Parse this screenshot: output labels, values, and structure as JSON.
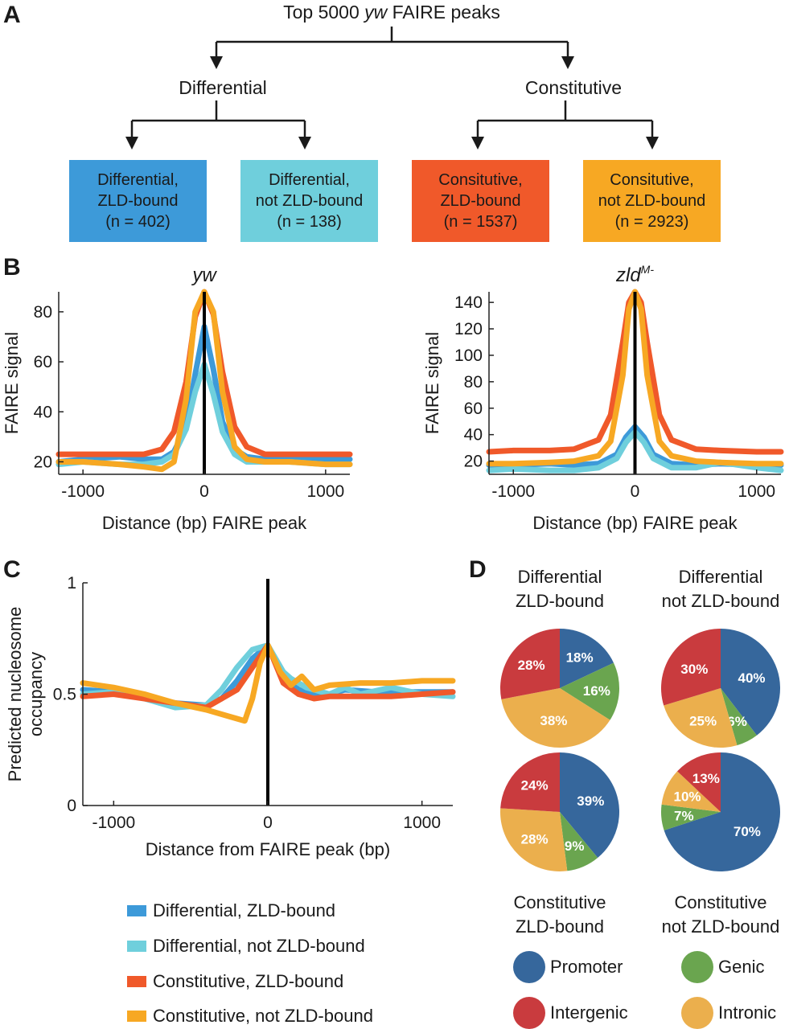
{
  "panels": {
    "a": "A",
    "b": "B",
    "c": "C",
    "d": "D"
  },
  "colors": {
    "diff_zld": "#3d9ad9",
    "diff_not": "#6fcfdc",
    "const_zld": "#f0592a",
    "const_not": "#f7a823",
    "promoter": "#36679c",
    "genic": "#6aa54f",
    "intergenic": "#c93b3e",
    "intronic": "#ebaf4d"
  },
  "tree": {
    "root_prefix": "Top 5000 ",
    "root_italic": "yw",
    "root_suffix": " FAIRE peaks",
    "differential": "Differential",
    "constitutive": "Constitutive",
    "boxes": [
      {
        "line1": "Differential,",
        "line2": "ZLD-bound",
        "line3": "(n = 402)"
      },
      {
        "line1": "Differential,",
        "line2": "not ZLD-bound",
        "line3": "(n = 138)"
      },
      {
        "line1": "Consitutive,",
        "line2": "ZLD-bound",
        "line3": "(n = 1537)"
      },
      {
        "line1": "Consitutive,",
        "line2": "not ZLD-bound",
        "line3": "(n = 2923)"
      }
    ]
  },
  "chart_data": [
    {
      "type": "line",
      "title": "yw",
      "xlabel": "Distance (bp) FAIRE peak",
      "ylabel": "FAIRE signal",
      "xlim": [
        -1200,
        1200
      ],
      "ylim": [
        15,
        88
      ],
      "x_ticks": [
        -1000,
        0,
        1000
      ],
      "x_tick_labels": [
        "-1000",
        "0",
        "1000"
      ],
      "y_ticks": [
        20,
        40,
        60,
        80
      ],
      "y_tick_labels": [
        "20",
        "40",
        "60",
        "80"
      ],
      "vertical_line_at": 0,
      "series": [
        {
          "name": "Differential, ZLD-bound",
          "color": "#3d9ad9",
          "x": [
            -1200,
            -1000,
            -700,
            -500,
            -350,
            -250,
            -150,
            -75,
            0,
            75,
            150,
            250,
            350,
            500,
            700,
            1000,
            1200
          ],
          "y": [
            20,
            21,
            22,
            21,
            21,
            24,
            34,
            55,
            74,
            57,
            36,
            25,
            22,
            21,
            21,
            21,
            21
          ]
        },
        {
          "name": "Differential, not ZLD-bound",
          "color": "#6fcfdc",
          "x": [
            -1200,
            -1000,
            -700,
            -500,
            -350,
            -250,
            -150,
            -75,
            0,
            75,
            150,
            250,
            350,
            500,
            700,
            1000,
            1200
          ],
          "y": [
            19,
            20,
            19,
            19,
            20,
            23,
            33,
            48,
            59,
            47,
            32,
            23,
            20,
            20,
            20,
            19,
            19
          ]
        },
        {
          "name": "Constitutive, ZLD-bound",
          "color": "#f0592a",
          "x": [
            -1200,
            -1000,
            -700,
            -500,
            -350,
            -250,
            -150,
            -75,
            0,
            75,
            150,
            250,
            350,
            500,
            700,
            1000,
            1200
          ],
          "y": [
            23,
            23,
            23,
            23,
            25,
            32,
            52,
            78,
            88,
            79,
            56,
            34,
            26,
            23,
            23,
            23,
            23
          ]
        },
        {
          "name": "Constitutive, not ZLD-bound",
          "color": "#f7a823",
          "x": [
            -1200,
            -1000,
            -700,
            -500,
            -350,
            -250,
            -150,
            -75,
            0,
            75,
            150,
            250,
            350,
            500,
            700,
            1000,
            1200
          ],
          "y": [
            20,
            20,
            19,
            18,
            17,
            20,
            45,
            80,
            88,
            80,
            48,
            26,
            21,
            20,
            20,
            19,
            19
          ]
        }
      ]
    },
    {
      "type": "line",
      "title": "zld",
      "title_superscript": "M-",
      "xlabel": "Distance (bp) FAIRE peak",
      "ylabel": "FAIRE signal",
      "xlim": [
        -1200,
        1200
      ],
      "ylim": [
        10,
        148
      ],
      "x_ticks": [
        -1000,
        0,
        1000
      ],
      "x_tick_labels": [
        "-1000",
        "0",
        "1000"
      ],
      "y_ticks": [
        20,
        40,
        60,
        80,
        100,
        120,
        140
      ],
      "y_tick_labels": [
        "20",
        "40",
        "60",
        "80",
        "100",
        "120",
        "140"
      ],
      "vertical_line_at": 0,
      "series": [
        {
          "name": "Differential, ZLD-bound",
          "color": "#3d9ad9",
          "x": [
            -1200,
            -1000,
            -700,
            -500,
            -300,
            -150,
            -75,
            0,
            75,
            150,
            300,
            500,
            700,
            1000,
            1200
          ],
          "y": [
            17,
            17,
            18,
            17,
            18,
            25,
            38,
            46,
            38,
            25,
            18,
            17,
            18,
            17,
            17
          ]
        },
        {
          "name": "Differential, not ZLD-bound",
          "color": "#6fcfdc",
          "x": [
            -1200,
            -1000,
            -700,
            -500,
            -300,
            -150,
            -75,
            0,
            75,
            150,
            300,
            500,
            700,
            1000,
            1200
          ],
          "y": [
            13,
            14,
            13,
            13,
            15,
            22,
            34,
            42,
            34,
            22,
            15,
            15,
            19,
            15,
            13
          ]
        },
        {
          "name": "Constitutive, ZLD-bound",
          "color": "#f0592a",
          "x": [
            -1200,
            -1000,
            -700,
            -500,
            -300,
            -200,
            -100,
            -50,
            0,
            50,
            100,
            200,
            300,
            500,
            700,
            1000,
            1200
          ],
          "y": [
            27,
            28,
            28,
            29,
            36,
            55,
            110,
            140,
            148,
            140,
            110,
            55,
            36,
            29,
            28,
            27,
            27
          ]
        },
        {
          "name": "Constitutive, not ZLD-bound",
          "color": "#f7a823",
          "x": [
            -1200,
            -1000,
            -700,
            -500,
            -300,
            -200,
            -100,
            -50,
            0,
            50,
            100,
            200,
            300,
            500,
            700,
            1000,
            1200
          ],
          "y": [
            18,
            18,
            19,
            20,
            24,
            35,
            85,
            135,
            148,
            135,
            85,
            35,
            24,
            20,
            19,
            18,
            18
          ]
        }
      ]
    },
    {
      "type": "line",
      "title": "",
      "xlabel": "Distance from FAIRE peak (bp)",
      "ylabel": "Predicted nucleosome occupancy",
      "xlim": [
        -1200,
        1200
      ],
      "ylim": [
        0,
        1
      ],
      "x_ticks": [
        -1000,
        0,
        1000
      ],
      "x_tick_labels": [
        "-1000",
        "0",
        "1000"
      ],
      "y_ticks": [
        0,
        0.5,
        1
      ],
      "y_tick_labels": [
        "0",
        "0.5",
        "1"
      ],
      "vertical_line_at": 0,
      "series": [
        {
          "name": "Differential, ZLD-bound",
          "color": "#3d9ad9",
          "x": [
            -1200,
            -1000,
            -800,
            -600,
            -400,
            -300,
            -200,
            -100,
            0,
            100,
            200,
            300,
            400,
            500,
            700,
            900,
            1200
          ],
          "y": [
            0.52,
            0.51,
            0.49,
            0.46,
            0.45,
            0.48,
            0.56,
            0.66,
            0.72,
            0.58,
            0.52,
            0.5,
            0.5,
            0.52,
            0.51,
            0.51,
            0.51
          ]
        },
        {
          "name": "Differential, not ZLD-bound",
          "color": "#6fcfdc",
          "x": [
            -1200,
            -1000,
            -800,
            -600,
            -400,
            -300,
            -200,
            -100,
            0,
            100,
            150,
            250,
            400,
            500,
            600,
            800,
            1000,
            1200
          ],
          "y": [
            0.5,
            0.51,
            0.48,
            0.44,
            0.45,
            0.52,
            0.62,
            0.7,
            0.72,
            0.6,
            0.57,
            0.53,
            0.5,
            0.53,
            0.5,
            0.53,
            0.5,
            0.49
          ]
        },
        {
          "name": "Constitutive, ZLD-bound",
          "color": "#f0592a",
          "x": [
            -1200,
            -1000,
            -800,
            -600,
            -400,
            -200,
            -100,
            0,
            100,
            200,
            300,
            400,
            600,
            800,
            1000,
            1200
          ],
          "y": [
            0.49,
            0.5,
            0.48,
            0.46,
            0.44,
            0.52,
            0.62,
            0.72,
            0.55,
            0.5,
            0.48,
            0.49,
            0.49,
            0.49,
            0.5,
            0.51
          ]
        },
        {
          "name": "Constitutive, not ZLD-bound",
          "color": "#f7a823",
          "x": [
            -1200,
            -1000,
            -800,
            -600,
            -400,
            -250,
            -150,
            -100,
            -50,
            0,
            80,
            150,
            220,
            300,
            400,
            600,
            800,
            1000,
            1200
          ],
          "y": [
            0.55,
            0.53,
            0.5,
            0.46,
            0.43,
            0.4,
            0.38,
            0.48,
            0.64,
            0.72,
            0.6,
            0.54,
            0.58,
            0.52,
            0.54,
            0.55,
            0.55,
            0.56,
            0.56
          ]
        }
      ]
    },
    {
      "type": "pie",
      "title_lines": [
        "Differential",
        "ZLD-bound"
      ],
      "slices": [
        {
          "label": "Promoter",
          "value": 18,
          "text": "18%",
          "color": "#36679c"
        },
        {
          "label": "Genic",
          "value": 16,
          "text": "16%",
          "color": "#6aa54f"
        },
        {
          "label": "Intronic",
          "value": 38,
          "text": "38%",
          "color": "#ebaf4d"
        },
        {
          "label": "Intergenic",
          "value": 28,
          "text": "28%",
          "color": "#c93b3e"
        }
      ]
    },
    {
      "type": "pie",
      "title_lines": [
        "Differential",
        "not ZLD-bound"
      ],
      "slices": [
        {
          "label": "Promoter",
          "value": 40,
          "text": "40%",
          "color": "#36679c"
        },
        {
          "label": "Genic",
          "value": 6,
          "text": "6%",
          "color": "#6aa54f"
        },
        {
          "label": "Intronic",
          "value": 25,
          "text": "25%",
          "color": "#ebaf4d"
        },
        {
          "label": "Intergenic",
          "value": 30,
          "text": "30%",
          "color": "#c93b3e"
        }
      ]
    },
    {
      "type": "pie",
      "title_lines": [
        "Constitutive",
        "ZLD-bound"
      ],
      "slices": [
        {
          "label": "Promoter",
          "value": 39,
          "text": "39%",
          "color": "#36679c"
        },
        {
          "label": "Genic",
          "value": 9,
          "text": "9%",
          "color": "#6aa54f"
        },
        {
          "label": "Intronic",
          "value": 28,
          "text": "28%",
          "color": "#ebaf4d"
        },
        {
          "label": "Intergenic",
          "value": 24,
          "text": "24%",
          "color": "#c93b3e"
        }
      ]
    },
    {
      "type": "pie",
      "title_lines": [
        "Constitutive",
        "not ZLD-bound"
      ],
      "slices": [
        {
          "label": "Promoter",
          "value": 70,
          "text": "70%",
          "color": "#36679c"
        },
        {
          "label": "Genic",
          "value": 7,
          "text": "7%",
          "color": "#6aa54f"
        },
        {
          "label": "Intronic",
          "value": 10,
          "text": "10%",
          "color": "#ebaf4d"
        },
        {
          "label": "Intergenic",
          "value": 13,
          "text": "13%",
          "color": "#c93b3e"
        }
      ]
    }
  ],
  "legend": {
    "series": [
      {
        "label": "Differential, ZLD-bound",
        "color": "#3d9ad9"
      },
      {
        "label": "Differential, not ZLD-bound",
        "color": "#6fcfdc"
      },
      {
        "label": "Constitutive, ZLD-bound",
        "color": "#f0592a"
      },
      {
        "label": "Constitutive, not ZLD-bound",
        "color": "#f7a823"
      }
    ],
    "categories": [
      {
        "label": "Promoter",
        "color": "#36679c"
      },
      {
        "label": "Genic",
        "color": "#6aa54f"
      },
      {
        "label": "Intergenic",
        "color": "#c93b3e"
      },
      {
        "label": "Intronic",
        "color": "#ebaf4d"
      }
    ]
  }
}
